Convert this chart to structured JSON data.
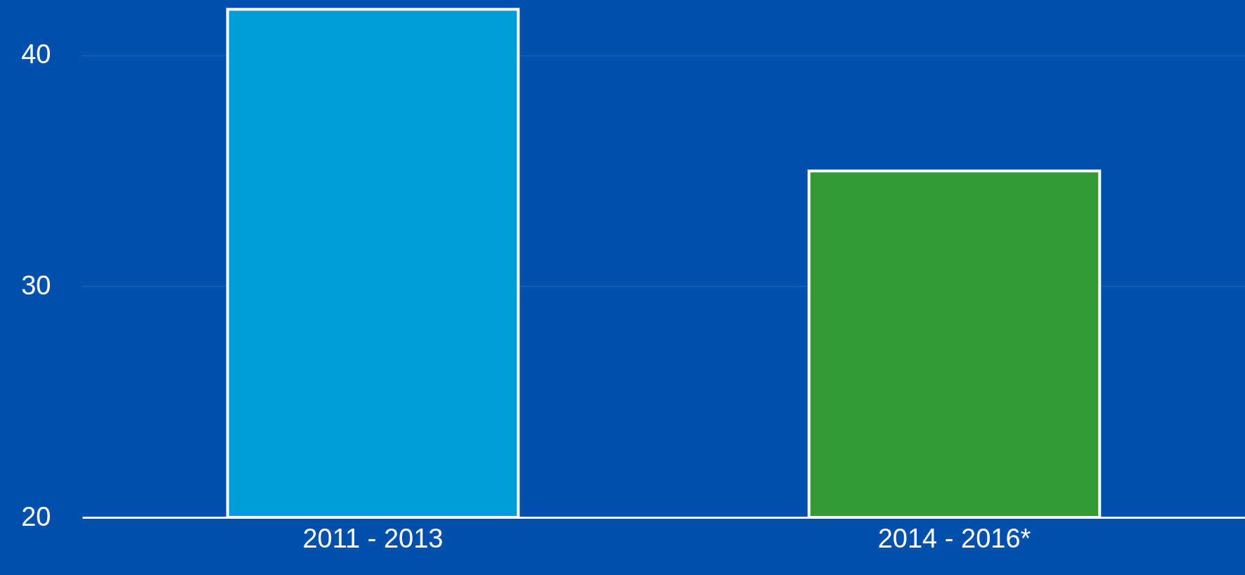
{
  "chart_data": {
    "type": "bar",
    "categories": [
      "2011 - 2013",
      "2014 - 2016*"
    ],
    "values": [
      42,
      35
    ],
    "colors": [
      "#009ed8",
      "#339933"
    ],
    "ylim": [
      20,
      42.4
    ],
    "yticks": [
      20,
      30,
      40
    ],
    "grid": "y",
    "legend": false
  }
}
